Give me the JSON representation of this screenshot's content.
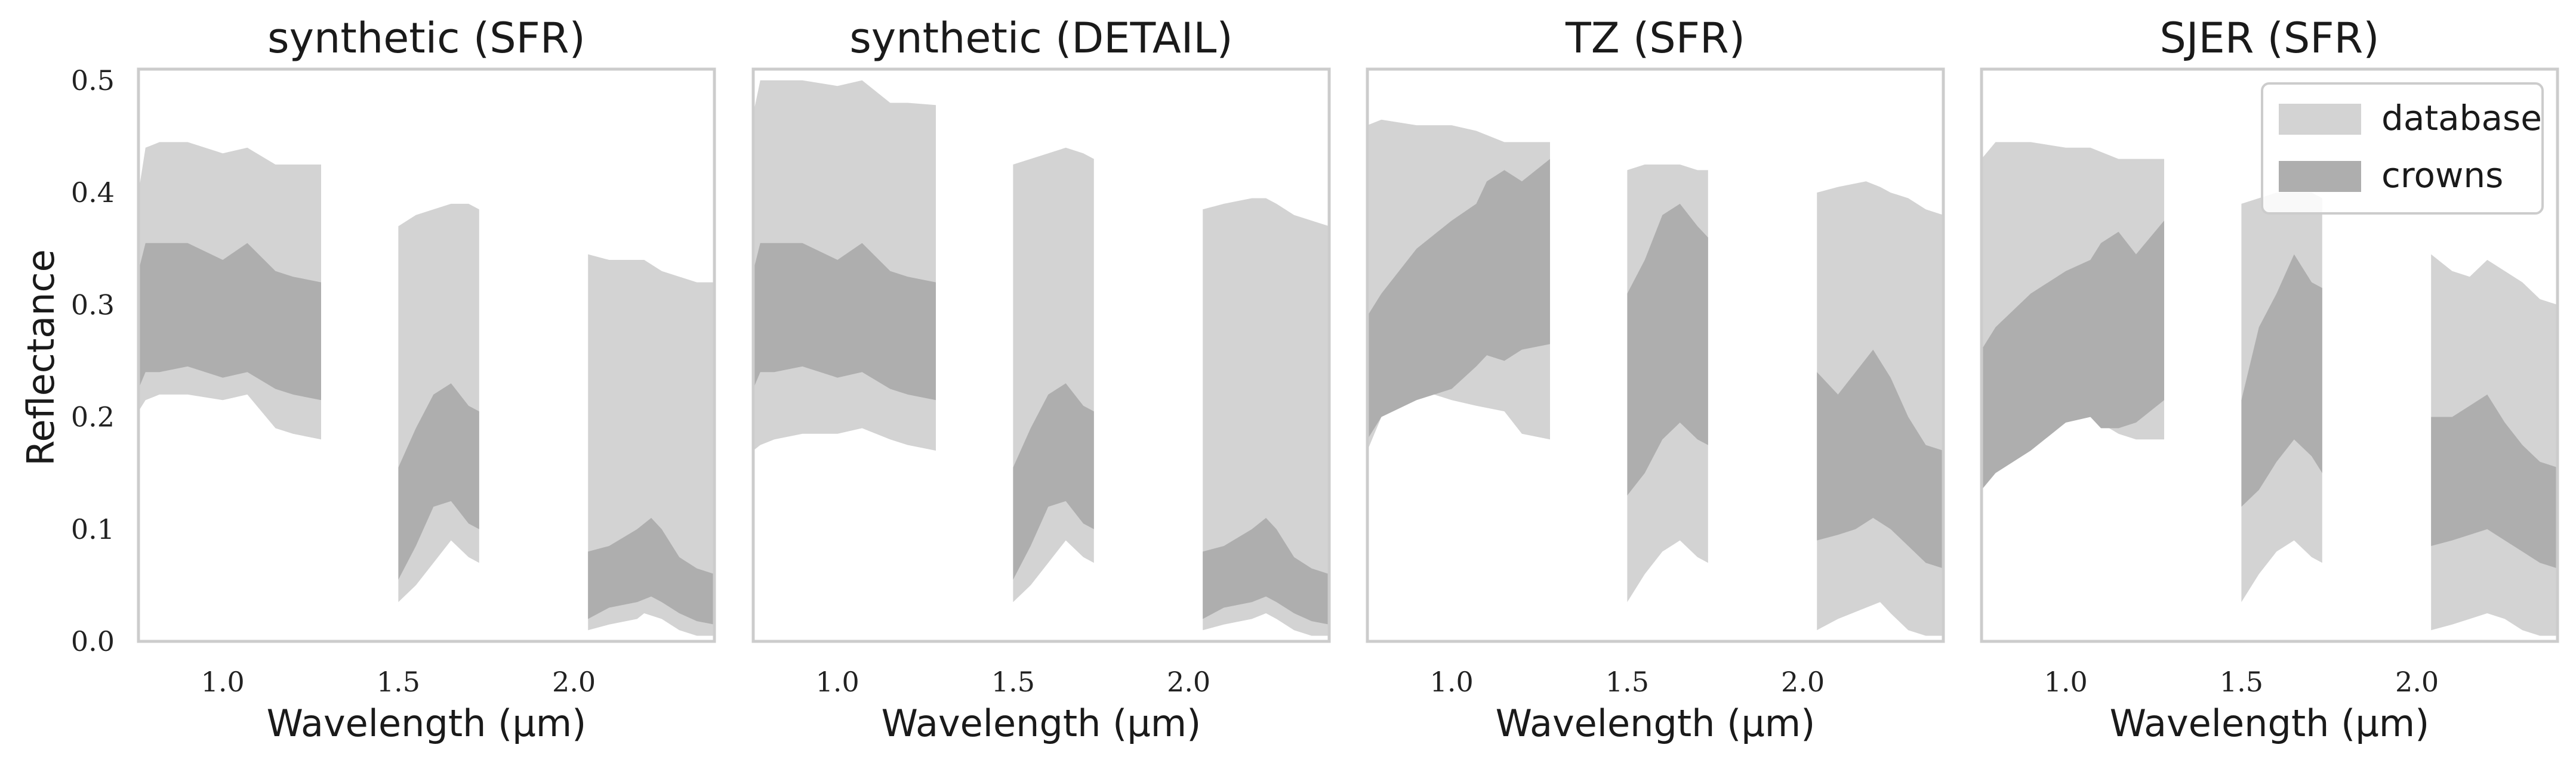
{
  "colors": {
    "database": "#d3d3d3",
    "crowns": "#aeaeae",
    "frame": "#cccccc",
    "text": "#1a1a1a"
  },
  "legend": {
    "items": [
      "database",
      "crowns"
    ],
    "placement": "top-right of fourth panel"
  },
  "chart_data": [
    {
      "type": "area",
      "title": "synthetic (SFR)",
      "xlabel": "Wavelength (µm)",
      "ylabel": "Reflectance",
      "xlim": [
        0.76,
        2.4
      ],
      "ylim": [
        0.0,
        0.51
      ],
      "xticks": [
        "1.0",
        "1.5",
        "2.0"
      ],
      "yticks": [
        "0.0",
        "0.1",
        "0.2",
        "0.3",
        "0.4",
        "0.5"
      ],
      "grid": false,
      "series": [
        {
          "name": "database",
          "segments": [
            {
              "x": [
                0.76,
                0.78,
                0.82,
                0.9,
                1.0,
                1.07,
                1.15,
                1.2,
                1.28
              ],
              "upper": [
                0.4,
                0.44,
                0.445,
                0.445,
                0.435,
                0.44,
                0.425,
                0.425,
                0.425
              ],
              "lower": [
                0.205,
                0.215,
                0.22,
                0.22,
                0.215,
                0.22,
                0.19,
                0.185,
                0.18
              ]
            },
            {
              "x": [
                1.5,
                1.55,
                1.6,
                1.65,
                1.7,
                1.73
              ],
              "upper": [
                0.37,
                0.38,
                0.385,
                0.39,
                0.39,
                0.385
              ],
              "lower": [
                0.035,
                0.05,
                0.07,
                0.09,
                0.075,
                0.07
              ]
            },
            {
              "x": [
                2.04,
                2.1,
                2.18,
                2.2,
                2.25,
                2.3,
                2.35,
                2.4
              ],
              "upper": [
                0.345,
                0.34,
                0.34,
                0.34,
                0.33,
                0.325,
                0.32,
                0.32
              ],
              "lower": [
                0.01,
                0.015,
                0.02,
                0.025,
                0.02,
                0.01,
                0.005,
                0.005
              ]
            }
          ]
        },
        {
          "name": "crowns",
          "segments": [
            {
              "x": [
                0.76,
                0.78,
                0.82,
                0.9,
                1.0,
                1.07,
                1.15,
                1.2,
                1.28
              ],
              "upper": [
                0.33,
                0.355,
                0.355,
                0.355,
                0.34,
                0.355,
                0.33,
                0.325,
                0.32
              ],
              "lower": [
                0.225,
                0.24,
                0.24,
                0.245,
                0.235,
                0.24,
                0.225,
                0.22,
                0.215
              ]
            },
            {
              "x": [
                1.5,
                1.55,
                1.6,
                1.65,
                1.7,
                1.73
              ],
              "upper": [
                0.155,
                0.19,
                0.22,
                0.23,
                0.21,
                0.205
              ],
              "lower": [
                0.055,
                0.085,
                0.12,
                0.125,
                0.105,
                0.1
              ]
            },
            {
              "x": [
                2.04,
                2.1,
                2.18,
                2.22,
                2.25,
                2.3,
                2.35,
                2.4
              ],
              "upper": [
                0.08,
                0.085,
                0.1,
                0.11,
                0.1,
                0.075,
                0.065,
                0.06
              ],
              "lower": [
                0.02,
                0.03,
                0.035,
                0.04,
                0.035,
                0.025,
                0.018,
                0.015
              ]
            }
          ]
        }
      ]
    },
    {
      "type": "area",
      "title": "synthetic (DETAIL)",
      "xlabel": "Wavelength (µm)",
      "ylabel": "",
      "xlim": [
        0.76,
        2.4
      ],
      "ylim": [
        0.0,
        0.51
      ],
      "xticks": [
        "1.0",
        "1.5",
        "2.0"
      ],
      "yticks": [],
      "grid": false,
      "series": [
        {
          "name": "database",
          "segments": [
            {
              "x": [
                0.76,
                0.78,
                0.82,
                0.9,
                1.0,
                1.07,
                1.15,
                1.2,
                1.28
              ],
              "upper": [
                0.47,
                0.5,
                0.5,
                0.5,
                0.495,
                0.5,
                0.48,
                0.48,
                0.478
              ],
              "lower": [
                0.17,
                0.175,
                0.18,
                0.185,
                0.185,
                0.19,
                0.18,
                0.175,
                0.17
              ]
            },
            {
              "x": [
                1.5,
                1.55,
                1.6,
                1.65,
                1.7,
                1.73
              ],
              "upper": [
                0.425,
                0.43,
                0.435,
                0.44,
                0.435,
                0.43
              ],
              "lower": [
                0.035,
                0.05,
                0.07,
                0.09,
                0.075,
                0.07
              ]
            },
            {
              "x": [
                2.04,
                2.1,
                2.18,
                2.22,
                2.25,
                2.3,
                2.35,
                2.4
              ],
              "upper": [
                0.385,
                0.39,
                0.395,
                0.395,
                0.39,
                0.38,
                0.375,
                0.37
              ],
              "lower": [
                0.01,
                0.015,
                0.02,
                0.025,
                0.02,
                0.01,
                0.005,
                0.005
              ]
            }
          ]
        },
        {
          "name": "crowns",
          "segments": [
            {
              "x": [
                0.76,
                0.78,
                0.82,
                0.9,
                1.0,
                1.07,
                1.15,
                1.2,
                1.28
              ],
              "upper": [
                0.33,
                0.355,
                0.355,
                0.355,
                0.34,
                0.355,
                0.33,
                0.325,
                0.32
              ],
              "lower": [
                0.225,
                0.24,
                0.24,
                0.245,
                0.235,
                0.24,
                0.225,
                0.22,
                0.215
              ]
            },
            {
              "x": [
                1.5,
                1.55,
                1.6,
                1.65,
                1.7,
                1.73
              ],
              "upper": [
                0.155,
                0.19,
                0.22,
                0.23,
                0.21,
                0.205
              ],
              "lower": [
                0.055,
                0.085,
                0.12,
                0.125,
                0.105,
                0.1
              ]
            },
            {
              "x": [
                2.04,
                2.1,
                2.18,
                2.22,
                2.25,
                2.3,
                2.35,
                2.4
              ],
              "upper": [
                0.08,
                0.085,
                0.1,
                0.11,
                0.1,
                0.075,
                0.065,
                0.06
              ],
              "lower": [
                0.02,
                0.03,
                0.035,
                0.04,
                0.035,
                0.025,
                0.018,
                0.015
              ]
            }
          ]
        }
      ]
    },
    {
      "type": "area",
      "title": "TZ (SFR)",
      "xlabel": "Wavelength (µm)",
      "ylabel": "",
      "xlim": [
        0.76,
        2.4
      ],
      "ylim": [
        0.0,
        0.51
      ],
      "xticks": [
        "1.0",
        "1.5",
        "2.0"
      ],
      "yticks": [],
      "grid": false,
      "series": [
        {
          "name": "database",
          "segments": [
            {
              "x": [
                0.76,
                0.8,
                0.9,
                1.0,
                1.07,
                1.15,
                1.2,
                1.28
              ],
              "upper": [
                0.46,
                0.465,
                0.46,
                0.46,
                0.455,
                0.445,
                0.445,
                0.445
              ],
              "lower": [
                0.17,
                0.2,
                0.225,
                0.215,
                0.21,
                0.205,
                0.185,
                0.18
              ]
            },
            {
              "x": [
                1.5,
                1.55,
                1.6,
                1.65,
                1.7,
                1.73
              ],
              "upper": [
                0.42,
                0.425,
                0.425,
                0.425,
                0.42,
                0.42
              ],
              "lower": [
                0.035,
                0.06,
                0.08,
                0.09,
                0.075,
                0.07
              ]
            },
            {
              "x": [
                2.04,
                2.1,
                2.18,
                2.22,
                2.25,
                2.3,
                2.35,
                2.4
              ],
              "upper": [
                0.4,
                0.405,
                0.41,
                0.405,
                0.4,
                0.395,
                0.385,
                0.38
              ],
              "lower": [
                0.01,
                0.02,
                0.03,
                0.035,
                0.025,
                0.01,
                0.005,
                0.005
              ]
            }
          ]
        },
        {
          "name": "crowns",
          "segments": [
            {
              "x": [
                0.76,
                0.8,
                0.9,
                1.0,
                1.07,
                1.1,
                1.15,
                1.2,
                1.28
              ],
              "upper": [
                0.29,
                0.31,
                0.35,
                0.375,
                0.39,
                0.41,
                0.42,
                0.41,
                0.43
              ],
              "lower": [
                0.18,
                0.2,
                0.215,
                0.225,
                0.245,
                0.255,
                0.25,
                0.26,
                0.265
              ]
            },
            {
              "x": [
                1.5,
                1.55,
                1.6,
                1.65,
                1.7,
                1.73
              ],
              "upper": [
                0.31,
                0.34,
                0.38,
                0.39,
                0.37,
                0.36
              ],
              "lower": [
                0.13,
                0.15,
                0.18,
                0.195,
                0.18,
                0.175
              ]
            },
            {
              "x": [
                2.04,
                2.1,
                2.15,
                2.2,
                2.25,
                2.3,
                2.35,
                2.4
              ],
              "upper": [
                0.24,
                0.22,
                0.24,
                0.26,
                0.235,
                0.2,
                0.175,
                0.17
              ],
              "lower": [
                0.09,
                0.095,
                0.1,
                0.11,
                0.1,
                0.085,
                0.07,
                0.065
              ]
            }
          ]
        }
      ]
    },
    {
      "type": "area",
      "title": "SJER (SFR)",
      "xlabel": "Wavelength (µm)",
      "ylabel": "",
      "xlim": [
        0.76,
        2.4
      ],
      "ylim": [
        0.0,
        0.51
      ],
      "xticks": [
        "1.0",
        "1.5",
        "2.0"
      ],
      "yticks": [],
      "grid": false,
      "series": [
        {
          "name": "database",
          "segments": [
            {
              "x": [
                0.76,
                0.8,
                0.9,
                1.0,
                1.07,
                1.15,
                1.2,
                1.28
              ],
              "upper": [
                0.43,
                0.445,
                0.445,
                0.44,
                0.44,
                0.43,
                0.43,
                0.43
              ],
              "lower": [
                0.14,
                0.16,
                0.175,
                0.195,
                0.2,
                0.185,
                0.18,
                0.18
              ]
            },
            {
              "x": [
                1.5,
                1.55,
                1.6,
                1.65,
                1.7,
                1.73
              ],
              "upper": [
                0.39,
                0.395,
                0.4,
                0.4,
                0.4,
                0.395
              ],
              "lower": [
                0.035,
                0.06,
                0.08,
                0.09,
                0.075,
                0.07
              ]
            },
            {
              "x": [
                2.04,
                2.1,
                2.15,
                2.2,
                2.25,
                2.3,
                2.35,
                2.4
              ],
              "upper": [
                0.345,
                0.33,
                0.325,
                0.34,
                0.33,
                0.32,
                0.305,
                0.3
              ],
              "lower": [
                0.01,
                0.015,
                0.02,
                0.025,
                0.02,
                0.01,
                0.005,
                0.005
              ]
            }
          ]
        },
        {
          "name": "crowns",
          "segments": [
            {
              "x": [
                0.76,
                0.8,
                0.9,
                1.0,
                1.07,
                1.1,
                1.15,
                1.2,
                1.28
              ],
              "upper": [
                0.26,
                0.28,
                0.31,
                0.33,
                0.34,
                0.355,
                0.365,
                0.345,
                0.375
              ],
              "lower": [
                0.135,
                0.15,
                0.17,
                0.195,
                0.2,
                0.19,
                0.19,
                0.195,
                0.215
              ]
            },
            {
              "x": [
                1.5,
                1.55,
                1.6,
                1.65,
                1.7,
                1.73
              ],
              "upper": [
                0.215,
                0.28,
                0.31,
                0.345,
                0.32,
                0.315
              ],
              "lower": [
                0.12,
                0.135,
                0.16,
                0.18,
                0.165,
                0.15
              ]
            },
            {
              "x": [
                2.04,
                2.1,
                2.15,
                2.2,
                2.25,
                2.3,
                2.35,
                2.4
              ],
              "upper": [
                0.2,
                0.2,
                0.21,
                0.22,
                0.195,
                0.175,
                0.16,
                0.155
              ],
              "lower": [
                0.085,
                0.09,
                0.095,
                0.1,
                0.09,
                0.08,
                0.07,
                0.065
              ]
            }
          ]
        }
      ]
    }
  ]
}
